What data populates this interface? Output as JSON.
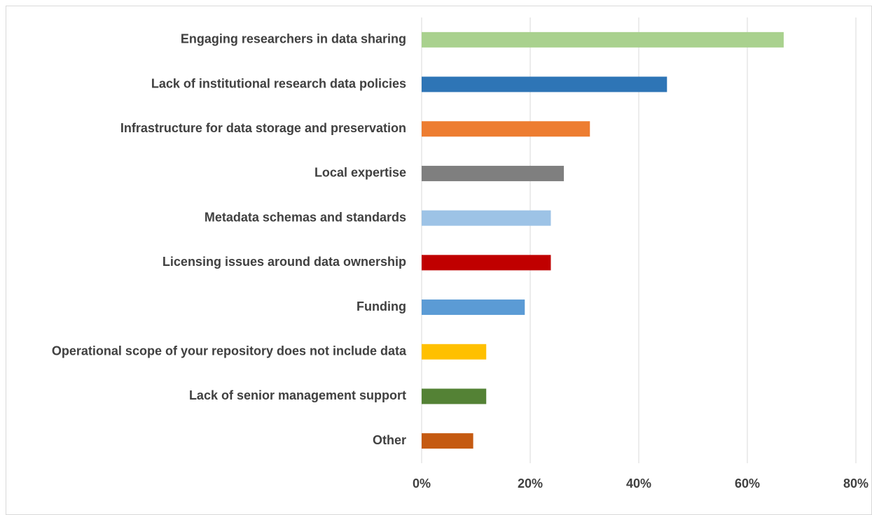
{
  "chart_data": {
    "type": "bar",
    "orientation": "horizontal",
    "categories": [
      "Engaging researchers in data sharing",
      "Lack of institutional research data policies",
      "Infrastructure for data storage and preservation",
      "Local expertise",
      "Metadata schemas and standards",
      "Licensing issues around data ownership",
      "Funding",
      "Operational scope of your repository does not include data",
      "Lack of senior management support",
      "Other"
    ],
    "values": [
      66.7,
      45.2,
      31,
      26.2,
      23.8,
      23.8,
      19,
      11.9,
      11.9,
      9.5
    ],
    "colors": [
      "#a9d18e",
      "#2e75b6",
      "#ed7d31",
      "#7f7f7f",
      "#9dc3e6",
      "#c00000",
      "#5b9bd5",
      "#ffc000",
      "#548235",
      "#c55a11"
    ],
    "xlim": [
      0,
      80
    ],
    "xticks": [
      {
        "value": 0,
        "label": "0%"
      },
      {
        "value": 20,
        "label": "20%"
      },
      {
        "value": 40,
        "label": "40%"
      },
      {
        "value": 60,
        "label": "60%"
      },
      {
        "value": 80,
        "label": "80%"
      }
    ],
    "grid": true
  }
}
